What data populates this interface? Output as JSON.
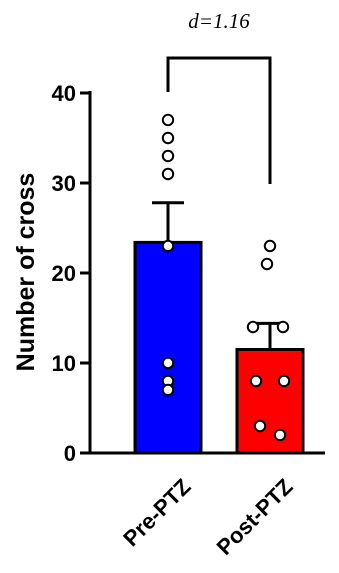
{
  "chart_data": {
    "type": "bar",
    "title": "",
    "xlabel": "",
    "ylabel": "Number of cross",
    "ylim": [
      0,
      40
    ],
    "yticks": [
      0,
      10,
      20,
      30,
      40
    ],
    "grid": false,
    "categories": [
      "Pre-PTZ",
      "Post-PTZ"
    ],
    "values": [
      23.4,
      11.5
    ],
    "errors": [
      4.4,
      2.9
    ],
    "colors": [
      "#0000ff",
      "#ff0000"
    ],
    "points": [
      [
        37,
        35,
        33,
        31,
        23,
        8,
        10,
        7
      ],
      [
        23,
        21,
        14,
        14,
        8,
        8,
        3,
        2
      ]
    ],
    "annotation": {
      "text": "d=1.16",
      "between": [
        "Pre-PTZ",
        "Post-PTZ"
      ]
    }
  }
}
